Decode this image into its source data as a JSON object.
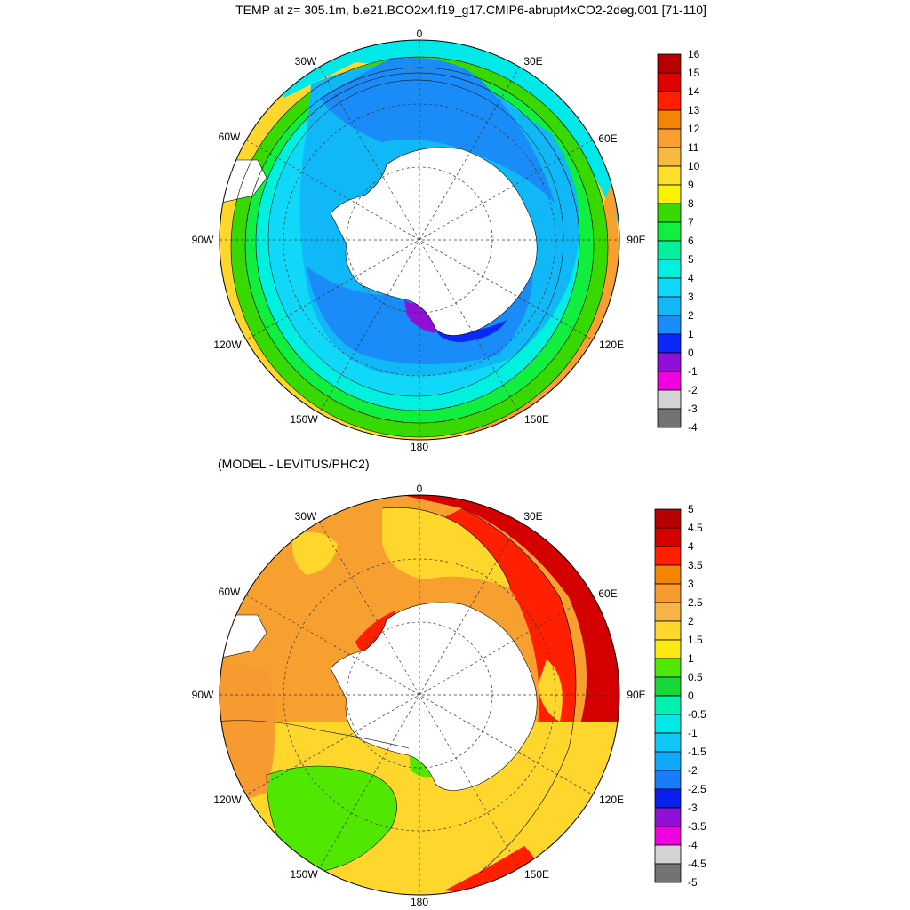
{
  "title": "TEMP at z= 305.1m, b.e21.BCO2x4.f19_g17.CMIP6-abrupt4xCO2-2deg.001 [71-110]",
  "panels": [
    {
      "id": "model",
      "subtitle": "",
      "longitude_labels": [
        "0",
        "30E",
        "60E",
        "90E",
        "120E",
        "150E",
        "180",
        "150W",
        "120W",
        "90W",
        "60W",
        "30W"
      ],
      "colorbar": {
        "labels": [
          "16",
          "15",
          "14",
          "13",
          "12",
          "11",
          "10",
          "9",
          "8",
          "7",
          "6",
          "5",
          "4",
          "3",
          "2",
          "1",
          "0",
          "-1",
          "-2",
          "-3",
          "-4"
        ],
        "colors": [
          "#b40000",
          "#e00000",
          "#ff2000",
          "#f58400",
          "#f7a030",
          "#f9b840",
          "#ffdf2a",
          "#fbf200",
          "#38d900",
          "#10ee40",
          "#00f0a0",
          "#00f0e0",
          "#10d8f8",
          "#10b8f8",
          "#1a8cf8",
          "#0a28f8",
          "#9010d8",
          "#f000e0",
          "#d3d3d3",
          "#737373"
        ]
      }
    },
    {
      "id": "difference",
      "subtitle": "(MODEL - LEVITUS/PHC2)",
      "longitude_labels": [
        "0",
        "30E",
        "60E",
        "90E",
        "120E",
        "150E",
        "180",
        "150W",
        "120W",
        "90W",
        "60W",
        "30W"
      ],
      "colorbar": {
        "labels": [
          "5",
          "4.5",
          "4",
          "3.5",
          "3",
          "2.5",
          "2",
          "1.5",
          "1",
          "0.5",
          "0",
          "-0.5",
          "-1",
          "-1.5",
          "-2",
          "-2.5",
          "-3",
          "-3.5",
          "-4",
          "-4.5",
          "-5"
        ],
        "colors": [
          "#b40000",
          "#d40000",
          "#ff2000",
          "#f58400",
          "#f79a30",
          "#f9b448",
          "#ffd62c",
          "#fbea10",
          "#50e800",
          "#18d838",
          "#00f0b0",
          "#00e8e8",
          "#10c8f8",
          "#10a8f8",
          "#1a7cf8",
          "#0a20f0",
          "#9010d8",
          "#f000e0",
          "#d3d3d3",
          "#737373"
        ]
      }
    }
  ]
}
